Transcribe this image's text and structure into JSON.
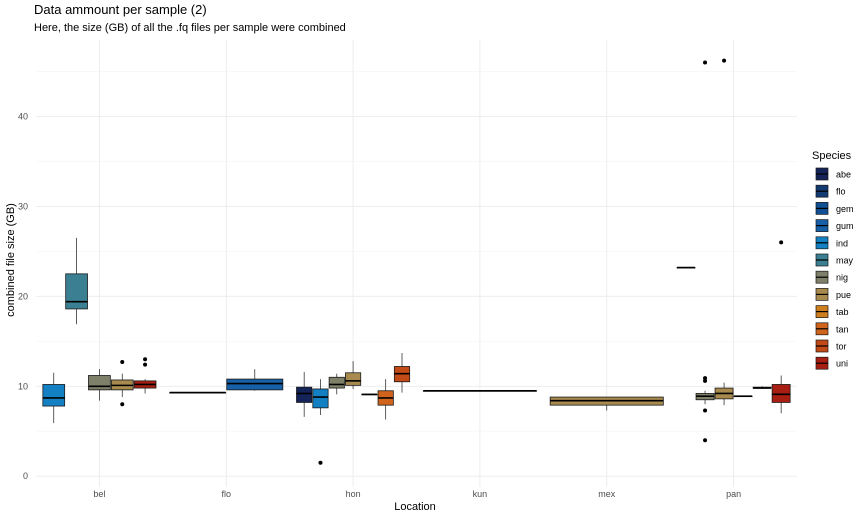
{
  "chart_data": {
    "type": "boxplot",
    "title": "Data ammount per sample (2)",
    "subtitle": "Here, the size (GB) of all the .fq files per sample were combined",
    "xlabel": "Location",
    "ylabel": "combined file size (GB)",
    "ylim": [
      -1.2,
      48.5
    ],
    "yticks": [
      0,
      10,
      20,
      30,
      40
    ],
    "grid": true,
    "legend": {
      "title": "Species",
      "position": "right"
    },
    "categories": [
      "bel",
      "flo",
      "hon",
      "kun",
      "mex",
      "pan"
    ],
    "species": [
      {
        "name": "abe",
        "color": "#142459"
      },
      {
        "name": "flo",
        "color": "#143a72"
      },
      {
        "name": "gem",
        "color": "#0f4f94"
      },
      {
        "name": "gum",
        "color": "#1760a8"
      },
      {
        "name": "ind",
        "color": "#1480c4"
      },
      {
        "name": "may",
        "color": "#3b7f92"
      },
      {
        "name": "nig",
        "color": "#7f8069"
      },
      {
        "name": "pue",
        "color": "#a88a4f"
      },
      {
        "name": "tab",
        "color": "#cf7e1d"
      },
      {
        "name": "tan",
        "color": "#d1641c"
      },
      {
        "name": "tor",
        "color": "#c24a16"
      },
      {
        "name": "uni",
        "color": "#a91e12"
      }
    ],
    "boxes": [
      {
        "location": "bel",
        "species": "ind",
        "lower": 5.9,
        "q1": 7.8,
        "median": 8.7,
        "q3": 10.2,
        "upper": 11.5,
        "outliers": []
      },
      {
        "location": "bel",
        "species": "may",
        "lower": 16.9,
        "q1": 18.6,
        "median": 19.4,
        "q3": 22.5,
        "upper": 26.5,
        "outliers": []
      },
      {
        "location": "bel",
        "species": "nig",
        "lower": 8.4,
        "q1": 9.6,
        "median": 10.0,
        "q3": 11.2,
        "upper": 11.9,
        "outliers": []
      },
      {
        "location": "bel",
        "species": "pue",
        "lower": 8.8,
        "q1": 9.6,
        "median": 10.1,
        "q3": 10.7,
        "upper": 11.4,
        "outliers": [
          12.7,
          8.0
        ]
      },
      {
        "location": "bel",
        "species": "uni",
        "lower": 9.2,
        "q1": 9.8,
        "median": 10.2,
        "q3": 10.6,
        "upper": 10.8,
        "outliers": [
          13.0,
          12.4
        ]
      },
      {
        "location": "flo",
        "species": "flo",
        "lower": 9.3,
        "q1": 9.3,
        "median": 9.3,
        "q3": 9.3,
        "upper": 9.3,
        "outliers": []
      },
      {
        "location": "flo",
        "species": "gum",
        "lower": 9.5,
        "q1": 9.6,
        "median": 10.3,
        "q3": 10.8,
        "upper": 11.9,
        "outliers": []
      },
      {
        "location": "hon",
        "species": "abe",
        "lower": 6.6,
        "q1": 8.2,
        "median": 9.2,
        "q3": 9.9,
        "upper": 11.6,
        "outliers": []
      },
      {
        "location": "hon",
        "species": "ind",
        "lower": 6.8,
        "q1": 7.6,
        "median": 8.8,
        "q3": 9.7,
        "upper": 10.8,
        "outliers": [
          1.5
        ]
      },
      {
        "location": "hon",
        "species": "nig",
        "lower": 9.1,
        "q1": 9.8,
        "median": 10.2,
        "q3": 11.0,
        "upper": 11.4,
        "outliers": []
      },
      {
        "location": "hon",
        "species": "pue",
        "lower": 9.7,
        "q1": 10.1,
        "median": 10.6,
        "q3": 11.5,
        "upper": 12.8,
        "outliers": []
      },
      {
        "location": "hon",
        "species": "tab",
        "lower": 9.1,
        "q1": 9.1,
        "median": 9.1,
        "q3": 9.1,
        "upper": 9.1,
        "outliers": []
      },
      {
        "location": "hon",
        "species": "tan",
        "lower": 6.3,
        "q1": 7.9,
        "median": 8.7,
        "q3": 9.5,
        "upper": 10.8,
        "outliers": []
      },
      {
        "location": "hon",
        "species": "tor",
        "lower": 9.3,
        "q1": 10.5,
        "median": 11.4,
        "q3": 12.2,
        "upper": 13.7,
        "outliers": []
      },
      {
        "location": "kun",
        "species": "ind",
        "lower": 9.5,
        "q1": 9.5,
        "median": 9.5,
        "q3": 9.5,
        "upper": 9.5,
        "outliers": []
      },
      {
        "location": "mex",
        "species": "pue",
        "lower": 7.3,
        "q1": 7.9,
        "median": 8.4,
        "q3": 8.8,
        "upper": 8.8,
        "outliers": []
      },
      {
        "location": "pan",
        "species": "gum",
        "lower": 23.2,
        "q1": 23.2,
        "median": 23.2,
        "q3": 23.2,
        "upper": 23.2,
        "outliers": []
      },
      {
        "location": "pan",
        "species": "nig",
        "lower": 8.0,
        "q1": 8.5,
        "median": 8.9,
        "q3": 9.2,
        "upper": 9.5,
        "outliers": [
          46.0,
          10.9,
          10.6,
          7.3,
          4.0
        ]
      },
      {
        "location": "pan",
        "species": "pue",
        "lower": 7.9,
        "q1": 8.6,
        "median": 9.2,
        "q3": 9.8,
        "upper": 10.4,
        "outliers": [
          46.2
        ]
      },
      {
        "location": "pan",
        "species": "tab",
        "lower": 8.9,
        "q1": 8.9,
        "median": 8.9,
        "q3": 8.9,
        "upper": 8.9,
        "outliers": []
      },
      {
        "location": "pan",
        "species": "tan",
        "lower": 9.7,
        "q1": 9.8,
        "median": 9.8,
        "q3": 9.9,
        "upper": 10.0,
        "outliers": []
      },
      {
        "location": "pan",
        "species": "uni",
        "lower": 7.0,
        "q1": 8.2,
        "median": 9.1,
        "q3": 10.2,
        "upper": 11.2,
        "outliers": [
          26.0
        ]
      }
    ]
  }
}
